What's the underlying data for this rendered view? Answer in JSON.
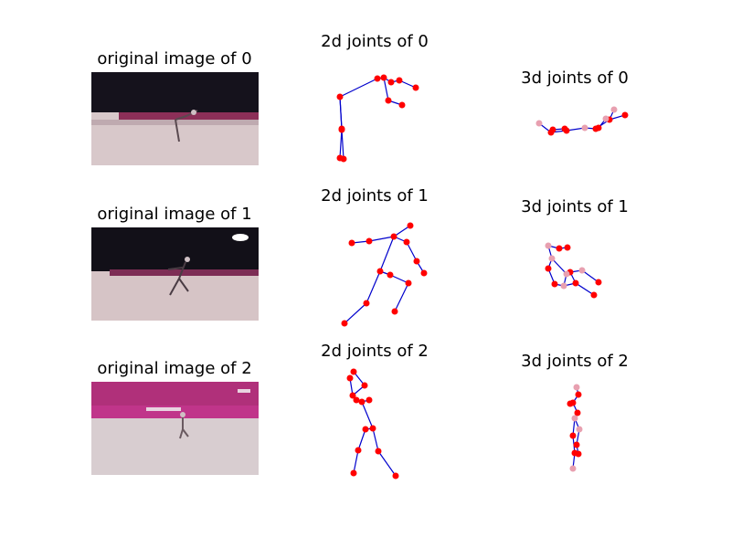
{
  "rows": [
    {
      "image_title": "original image of 0",
      "joints2d_title": "2d joints of 0",
      "joints3d_title": "3d joints of 0",
      "photo": {
        "wall": "#15121c",
        "banner": "#8c2f58",
        "floor": "#d8c8ca"
      }
    },
    {
      "image_title": "original image of 1",
      "joints2d_title": "2d joints of 1",
      "joints3d_title": "3d joints of 1",
      "photo": {
        "wall": "#121018",
        "banner": "#7d2d55",
        "floor": "#d6c4c6"
      }
    },
    {
      "image_title": "original image of 2",
      "joints2d_title": "2d joints of 2",
      "joints3d_title": "3d joints of 2",
      "photo": {
        "wall": "#b0307a",
        "banner": "#c0358a",
        "floor": "#d8cdd0"
      }
    }
  ],
  "colors": {
    "bone": "#0000cc",
    "joint_2d": "#ff0000",
    "joint_3d_near": "#ff0000",
    "joint_3d_far": "#e8a0b0"
  }
}
